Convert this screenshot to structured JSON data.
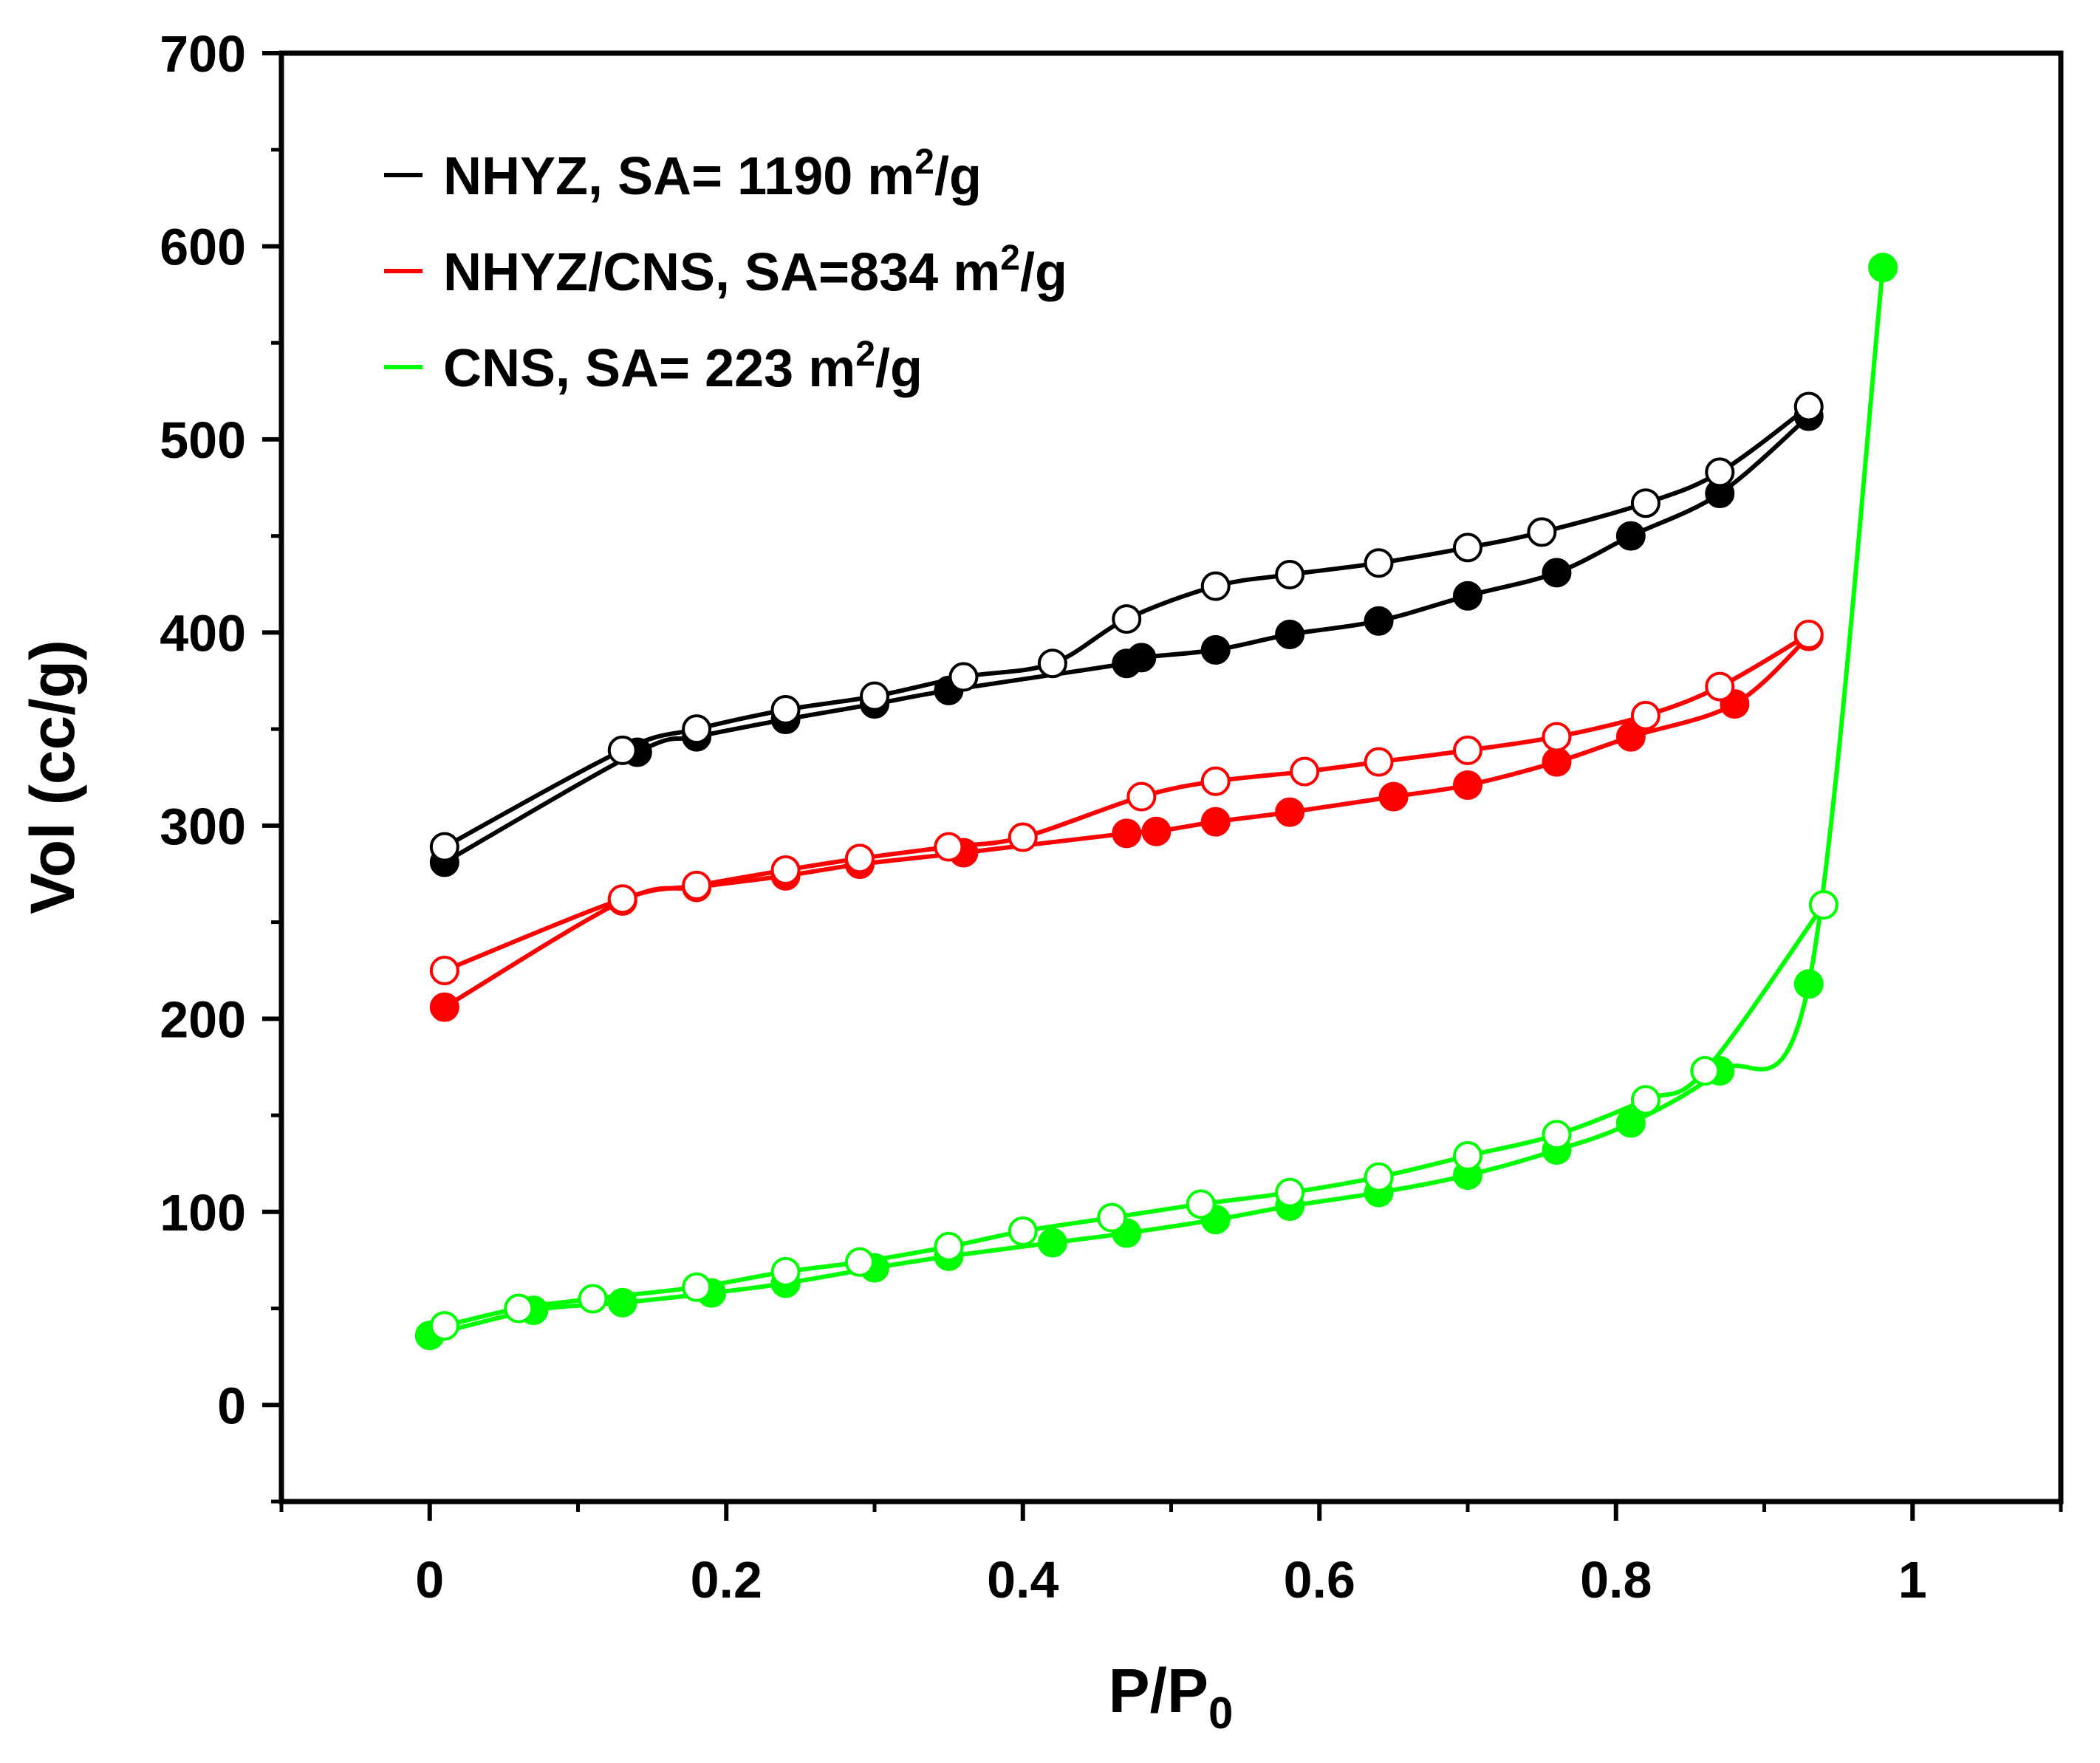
{
  "chart_data": {
    "type": "line",
    "title": "",
    "xlabel": "P/P",
    "xlabel_subscript": "0",
    "ylabel": "Vol (cc/g)",
    "xlim": [
      -0.1,
      1.1
    ],
    "ylim": [
      -50,
      700
    ],
    "x_ticks": [
      0,
      0.2,
      0.4,
      0.6,
      0.8,
      1
    ],
    "x_tick_labels": [
      "0",
      "0.2",
      "0.4",
      "0.6",
      "0.8",
      "1"
    ],
    "y_ticks": [
      0,
      100,
      200,
      300,
      400,
      500,
      600,
      700
    ],
    "y_tick_labels": [
      "0",
      "100",
      "200",
      "300",
      "400",
      "500",
      "600",
      "700"
    ],
    "legend_position": "top-left",
    "series": [
      {
        "name": "NHYZ, SA= 1190 m2/g",
        "legend_main": "NHYZ, SA= 1190 m",
        "legend_sup": "2",
        "legend_tail": "/g",
        "color": "#000000",
        "adsorption": {
          "x": [
            0.01,
            0.14,
            0.18,
            0.24,
            0.3,
            0.35,
            0.47,
            0.48,
            0.53,
            0.58,
            0.64,
            0.7,
            0.76,
            0.81,
            0.87,
            0.93
          ],
          "y": [
            281,
            338,
            346,
            355,
            363,
            370,
            384,
            387,
            391,
            399,
            406,
            419,
            431,
            450,
            472,
            512
          ]
        },
        "desorption": {
          "x": [
            0.93,
            0.87,
            0.82,
            0.75,
            0.7,
            0.64,
            0.58,
            0.53,
            0.47,
            0.42,
            0.36,
            0.3,
            0.24,
            0.18,
            0.13,
            0.01
          ],
          "y": [
            517,
            483,
            467,
            452,
            444,
            436,
            430,
            424,
            407,
            384,
            377,
            367,
            360,
            350,
            339,
            289
          ]
        }
      },
      {
        "name": "NHYZ/CNS, SA=834 m2/g",
        "legend_main": "NHYZ/CNS, SA=834 m",
        "legend_sup": "2",
        "legend_tail": "/g",
        "color": "#ff0000",
        "adsorption": {
          "x": [
            0.01,
            0.13,
            0.18,
            0.24,
            0.29,
            0.36,
            0.47,
            0.49,
            0.53,
            0.58,
            0.65,
            0.7,
            0.76,
            0.81,
            0.88,
            0.93
          ],
          "y": [
            206,
            261,
            268,
            274,
            280,
            286,
            296,
            297,
            302,
            307,
            315,
            321,
            333,
            346,
            363,
            398
          ]
        },
        "desorption": {
          "x": [
            0.93,
            0.87,
            0.82,
            0.76,
            0.7,
            0.64,
            0.59,
            0.53,
            0.48,
            0.4,
            0.35,
            0.29,
            0.24,
            0.18,
            0.13,
            0.01
          ],
          "y": [
            399,
            372,
            357,
            346,
            339,
            333,
            328,
            323,
            315,
            294,
            289,
            283,
            277,
            269,
            262,
            225
          ]
        }
      },
      {
        "name": "CNS, SA= 223 m2/g",
        "legend_main": "CNS, SA= 223 m",
        "legend_sup": "2",
        "legend_tail": "/g",
        "color": "#00ff00",
        "adsorption": {
          "x": [
            0.0,
            0.07,
            0.13,
            0.19,
            0.24,
            0.3,
            0.35,
            0.42,
            0.47,
            0.53,
            0.58,
            0.64,
            0.7,
            0.76,
            0.81,
            0.87,
            0.93,
            0.98
          ],
          "y": [
            36,
            49,
            53,
            58,
            63,
            71,
            77,
            84,
            89,
            96,
            103,
            110,
            119,
            132,
            146,
            173,
            218,
            589
          ]
        },
        "desorption": {
          "x": [
            0.94,
            0.86,
            0.82,
            0.76,
            0.7,
            0.64,
            0.58,
            0.52,
            0.46,
            0.4,
            0.35,
            0.29,
            0.24,
            0.18,
            0.11,
            0.06,
            0.01
          ],
          "y": [
            259,
            173,
            158,
            140,
            129,
            118,
            110,
            104,
            97,
            90,
            82,
            74,
            69,
            61,
            55,
            50,
            41
          ]
        }
      }
    ]
  }
}
